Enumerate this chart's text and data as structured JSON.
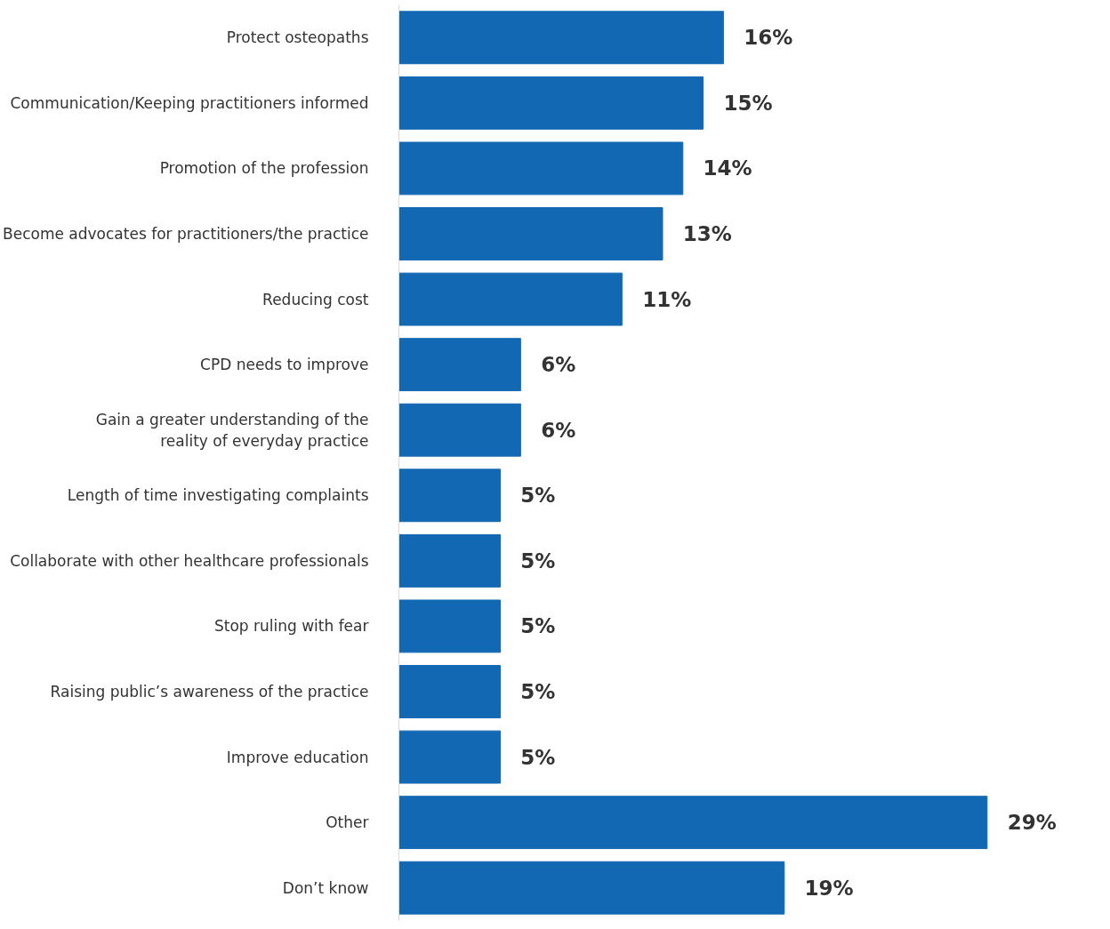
{
  "chart_data": {
    "type": "bar",
    "orientation": "horizontal",
    "categories": [
      "Protect osteopaths",
      "Communication/Keeping practitioners informed",
      "Promotion of the profession",
      "Become advocates for practitioners/the practice",
      "Reducing cost",
      "CPD needs to improve",
      "Gain a greater understanding of the\nreality of everyday practice",
      "Length of time investigating complaints",
      "Collaborate with other healthcare professionals",
      "Stop ruling with fear",
      "Raising public’s awareness of the practice",
      "Improve education",
      "Other",
      "Don’t know"
    ],
    "values": [
      16,
      15,
      14,
      13,
      11,
      6,
      6,
      5,
      5,
      5,
      5,
      5,
      29,
      19
    ],
    "value_labels": [
      "16%",
      "15%",
      "14%",
      "13%",
      "11%",
      "6%",
      "6%",
      "5%",
      "5%",
      "5%",
      "5%",
      "5%",
      "29%",
      "19%"
    ],
    "color": "#1368b3",
    "grid": false
  }
}
